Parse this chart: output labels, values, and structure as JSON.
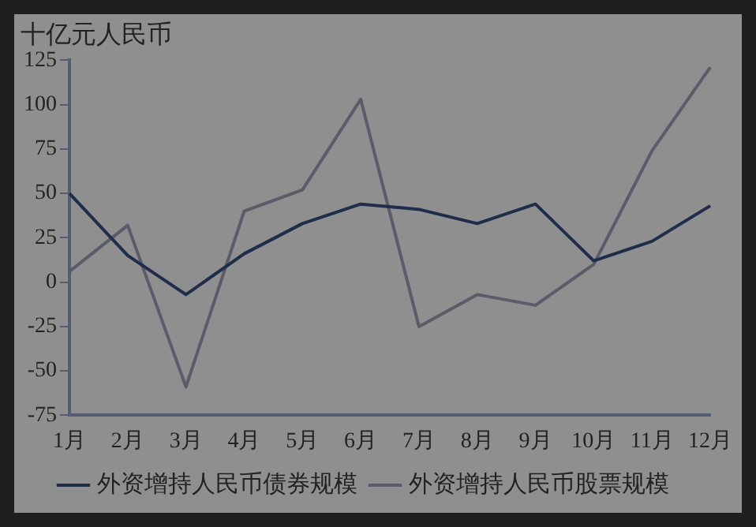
{
  "chart_data": {
    "type": "line",
    "ylabel": "十亿元人民币",
    "categories": [
      "1月",
      "2月",
      "3月",
      "4月",
      "5月",
      "6月",
      "7月",
      "8月",
      "9月",
      "10月",
      "11月",
      "12月"
    ],
    "series": [
      {
        "name": "外资增持人民币债券规模",
        "color": "#1f2d4a",
        "values": [
          50,
          15,
          -7,
          16,
          33,
          44,
          41,
          33,
          44,
          12,
          23,
          43
        ]
      },
      {
        "name": "外资增持人民币股票规模",
        "color": "#5c5b68",
        "values": [
          6,
          32,
          -59,
          40,
          52,
          103,
          -25,
          -7,
          -13,
          10,
          74,
          121
        ]
      }
    ],
    "ylim": [
      -75,
      125
    ],
    "yticks": [
      -75,
      -50,
      -25,
      0,
      25,
      50,
      75,
      100,
      125
    ],
    "grid": false,
    "legend": "bottom",
    "marker": "none",
    "line_style": "solid"
  }
}
